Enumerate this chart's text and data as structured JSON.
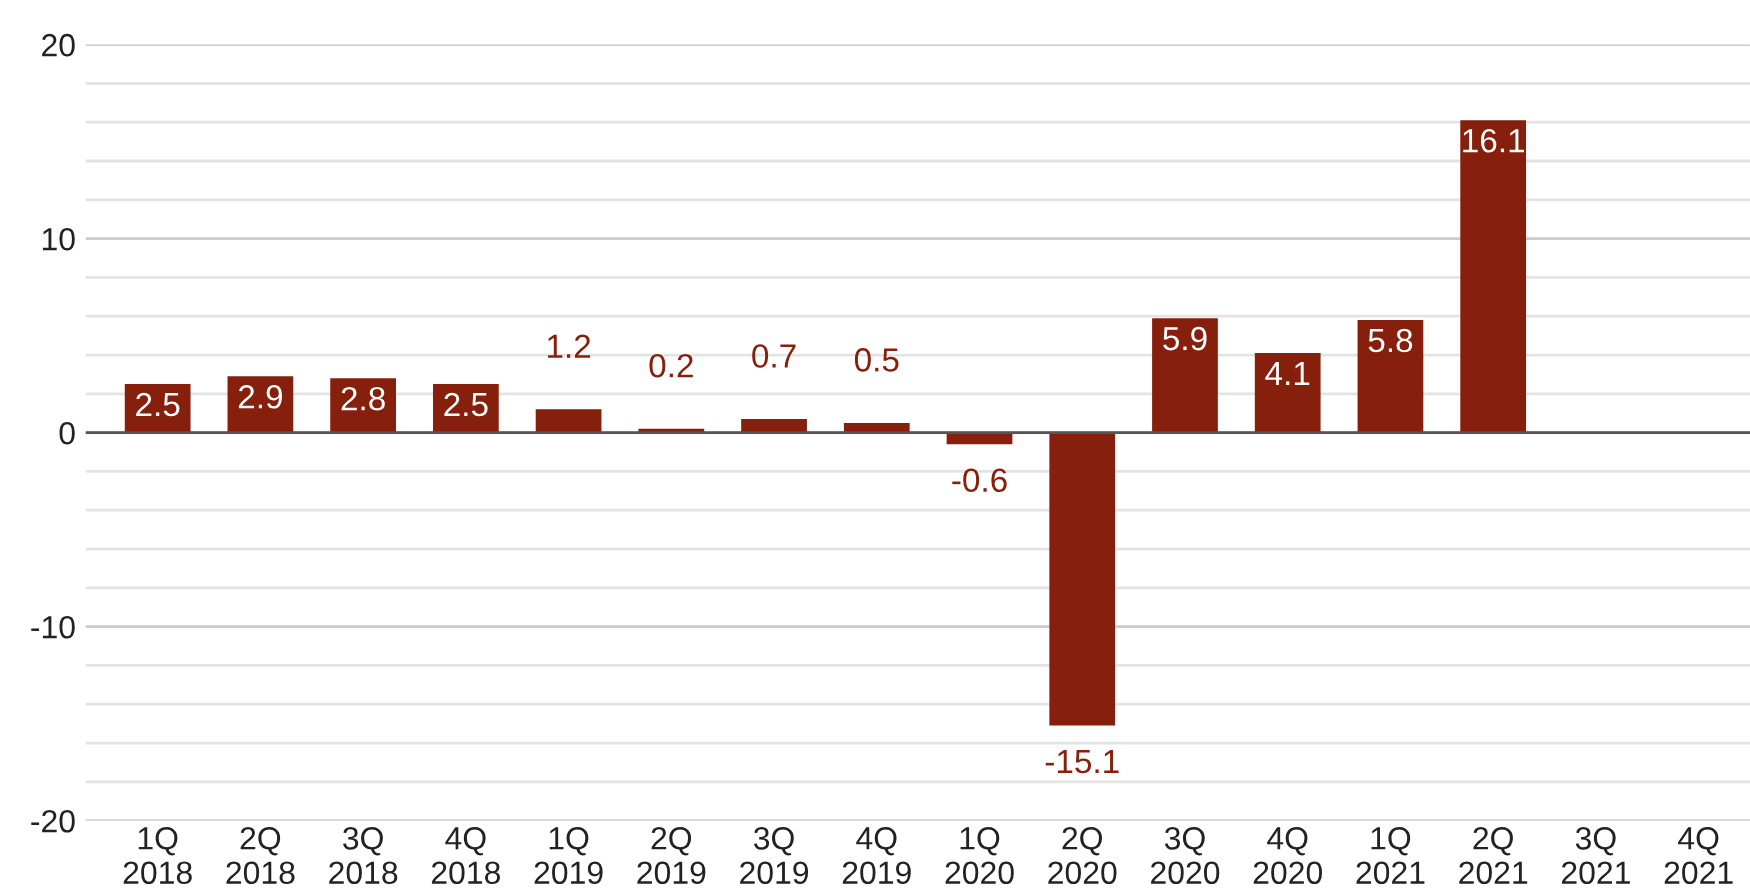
{
  "chart_data": {
    "type": "bar",
    "categories": [
      "1Q\n2018",
      "2Q\n2018",
      "3Q\n2018",
      "4Q\n2018",
      "1Q\n2019",
      "2Q\n2019",
      "3Q\n2019",
      "4Q\n2019",
      "1Q\n2020",
      "2Q\n2020",
      "3Q\n2020",
      "4Q\n2020",
      "1Q\n2021",
      "2Q\n2021",
      "3Q\n2021",
      "4Q\n2021"
    ],
    "values": [
      2.5,
      2.9,
      2.8,
      2.5,
      1.2,
      0.2,
      0.7,
      0.5,
      -0.6,
      -15.1,
      5.9,
      4.1,
      5.8,
      16.1,
      null,
      null
    ],
    "color": "#861f0c",
    "ylim": [
      -20,
      20
    ],
    "yticks": [
      -20,
      {
        "value": -18,
        "label": null
      },
      {
        "value": -16,
        "label": null
      },
      {
        "value": -14,
        "label": null
      },
      {
        "value": -12,
        "label": null
      },
      -10,
      {
        "value": -8,
        "label": null
      },
      {
        "value": -6,
        "label": null
      },
      {
        "value": -4,
        "label": null
      },
      {
        "value": -2,
        "label": null
      },
      0,
      {
        "value": 2,
        "label": null
      },
      {
        "value": 4,
        "label": null
      },
      {
        "value": 6,
        "label": null
      },
      {
        "value": 8,
        "label": null
      },
      10,
      {
        "value": 12,
        "label": null
      },
      {
        "value": 14,
        "label": null
      },
      {
        "value": 16,
        "label": null
      },
      {
        "value": 18,
        "label": null
      },
      20
    ],
    "grid": "y",
    "data_labels": true
  }
}
